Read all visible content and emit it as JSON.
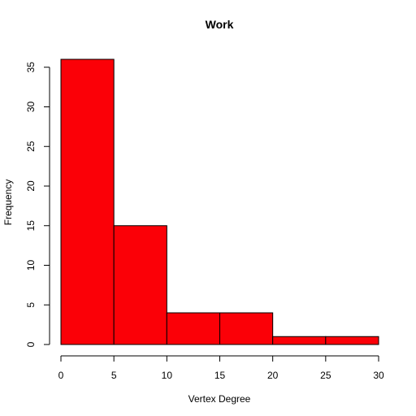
{
  "chart_data": {
    "type": "bar",
    "title": "Work",
    "xlabel": "Vertex Degree",
    "ylabel": "Frequency",
    "bins": [
      [
        0,
        5
      ],
      [
        5,
        10
      ],
      [
        10,
        15
      ],
      [
        15,
        20
      ],
      [
        20,
        25
      ],
      [
        25,
        30
      ]
    ],
    "values": [
      36,
      15,
      4,
      4,
      1,
      1
    ],
    "xlim": [
      0,
      30
    ],
    "ylim": [
      0,
      36
    ],
    "xticks": [
      0,
      5,
      10,
      15,
      20,
      25,
      30
    ],
    "yticks": [
      0,
      5,
      10,
      15,
      20,
      25,
      30,
      35
    ],
    "bar_color": "#fb0007",
    "edge_color": "#000000",
    "grid": false,
    "legend": "none"
  }
}
